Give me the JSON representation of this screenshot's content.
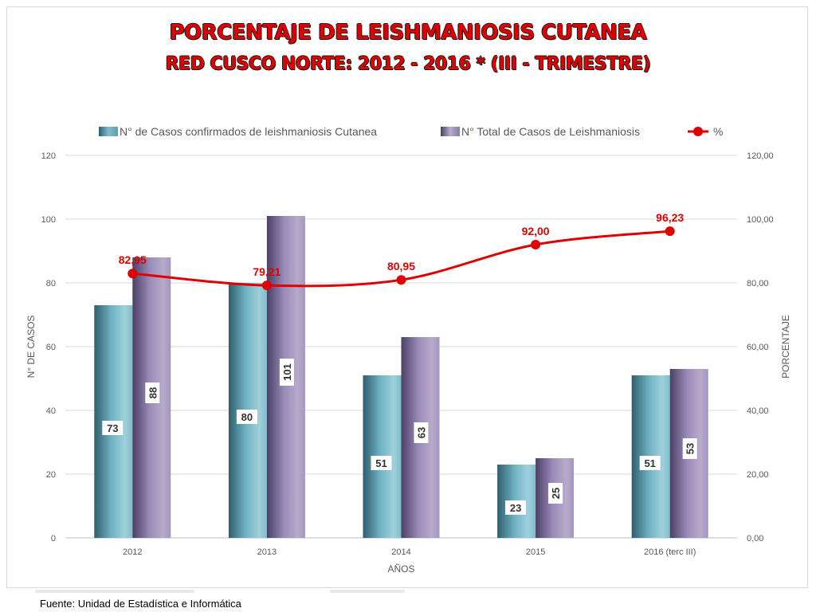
{
  "title_line1": "PORCENTAJE DE LEISHMANIOSIS CUTANEA",
  "title_line2": "RED CUSCO NORTE: 2012 - 2016 * (III - TRIMESTRE)",
  "source": "Fuente: Unidad de Estadística e Informática",
  "colors": {
    "series1": "#5f9fb0",
    "series2": "#8a7aa8",
    "line": "#e00000",
    "title": "#e00000",
    "grid": "#d9d9d9"
  },
  "chart_data": {
    "type": "bar",
    "categories": [
      "2012",
      "2013",
      "2014",
      "2015",
      "2016 (terc III)"
    ],
    "series": [
      {
        "name": "N° de Casos confirmados de leishmaniosis Cutanea",
        "type": "bar",
        "axis": "left",
        "values": [
          73,
          80,
          51,
          23,
          51
        ],
        "labels": [
          "73",
          "80",
          "51",
          "23",
          "51"
        ]
      },
      {
        "name": "N° Total de Casos de Leishmaniosis",
        "type": "bar",
        "axis": "left",
        "values": [
          88,
          101,
          63,
          25,
          53
        ],
        "labels": [
          "88",
          "101",
          "63",
          "25",
          "53"
        ]
      },
      {
        "name": "%",
        "type": "line",
        "axis": "right",
        "values": [
          82.95,
          79.21,
          80.95,
          92.0,
          96.23
        ],
        "labels": [
          "82,95",
          "79,21",
          "80,95",
          "92,00",
          "96,23"
        ]
      }
    ],
    "xlabel": "AÑOS",
    "ylabel": "N° DE CASOS",
    "y2label": "PORCENTAJE",
    "ylim": [
      0,
      120
    ],
    "y2lim": [
      0,
      120
    ],
    "yticks": [
      "0",
      "20",
      "40",
      "60",
      "80",
      "100",
      "120"
    ],
    "y2ticks": [
      "0,00",
      "20,00",
      "40,00",
      "60,00",
      "80,00",
      "100,00",
      "120,00"
    ],
    "grid": true,
    "legend_position": "top"
  }
}
